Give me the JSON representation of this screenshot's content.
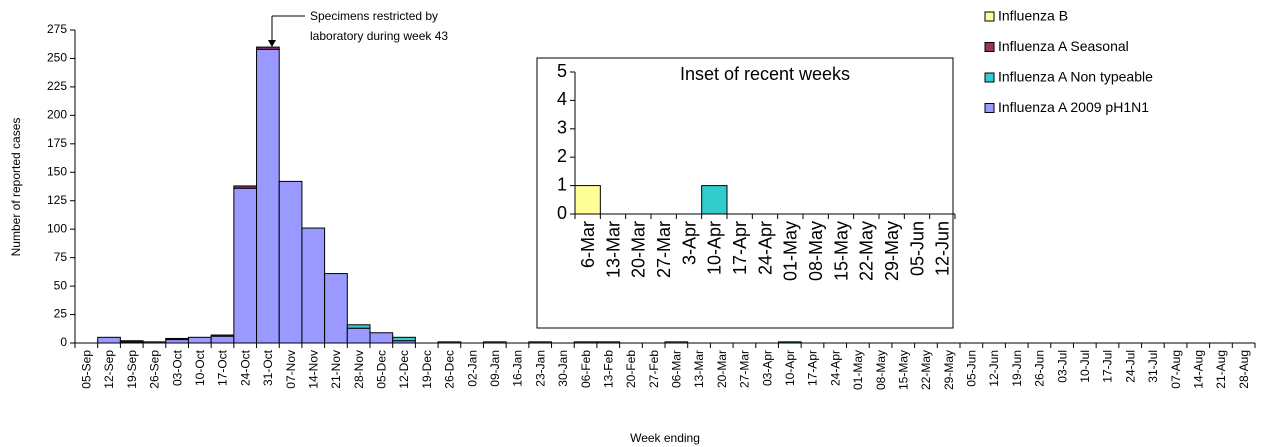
{
  "chart_data": [
    {
      "type": "bar",
      "stacked": true,
      "annotation": [
        "Specimens restricted by",
        "laboratory during week 43"
      ],
      "x_label": "Week ending",
      "y_label": "Number of reported cases",
      "categories": [
        "05-Sep",
        "12-Sep",
        "19-Sep",
        "26-Sep",
        "03-Oct",
        "10-Oct",
        "17-Oct",
        "24-Oct",
        "31-Oct",
        "07-Nov",
        "14-Nov",
        "21-Nov",
        "28-Nov",
        "05-Dec",
        "12-Dec",
        "19-Dec",
        "26-Dec",
        "02-Jan",
        "09-Jan",
        "16-Jan",
        "23-Jan",
        "30-Jan",
        "06-Feb",
        "13-Feb",
        "20-Feb",
        "27-Feb",
        "06-Mar",
        "13-Mar",
        "20-Mar",
        "27-Mar",
        "03-Apr",
        "10-Apr",
        "17-Apr",
        "24-Apr",
        "01-May",
        "08-May",
        "15-May",
        "22-May",
        "29-May",
        "05-Jun",
        "12-Jun",
        "19-Jun",
        "26-Jun",
        "03-Jul",
        "10-Jul",
        "17-Jul",
        "24-Jul",
        "31-Jul",
        "07-Aug",
        "14-Aug",
        "21-Aug",
        "28-Aug"
      ],
      "series": [
        {
          "name": "Influenza B",
          "color": "#ffff99",
          "values": [
            0,
            0,
            0,
            0,
            0,
            0,
            0,
            0,
            0,
            0,
            0,
            0,
            0,
            0,
            0,
            0,
            0,
            0,
            0,
            0,
            0,
            0,
            0,
            0,
            0,
            0,
            1,
            0,
            0,
            0,
            0,
            0,
            0,
            0,
            0,
            0,
            0,
            0,
            0,
            0,
            0,
            0,
            0,
            0,
            0,
            0,
            0,
            0,
            0,
            0,
            0,
            0
          ]
        },
        {
          "name": "Influenza A Seasonal",
          "color": "#993366",
          "values": [
            0,
            0,
            0,
            0,
            1,
            0,
            1,
            2,
            2,
            0,
            0,
            0,
            0,
            0,
            0,
            0,
            0,
            0,
            0,
            0,
            0,
            0,
            0,
            0,
            0,
            0,
            0,
            0,
            0,
            0,
            0,
            0,
            0,
            0,
            0,
            0,
            0,
            0,
            0,
            0,
            0,
            0,
            0,
            0,
            0,
            0,
            0,
            0,
            0,
            0,
            0,
            0
          ]
        },
        {
          "name": "Influenza A Non typeable",
          "color": "#33cccc",
          "values": [
            0,
            0,
            1,
            0,
            0,
            0,
            0,
            0,
            0,
            0,
            0,
            0,
            3,
            0,
            3,
            0,
            0,
            0,
            0,
            0,
            0,
            0,
            0,
            0,
            0,
            0,
            0,
            0,
            0,
            0,
            0,
            1,
            0,
            0,
            0,
            0,
            0,
            0,
            0,
            0,
            0,
            0,
            0,
            0,
            0,
            0,
            0,
            0,
            0,
            0,
            0,
            0
          ]
        },
        {
          "name": "Influenza A 2009 pH1N1",
          "color": "#9999ff",
          "values": [
            0,
            5,
            1,
            1,
            3,
            5,
            6,
            136,
            258,
            142,
            101,
            61,
            13,
            9,
            2,
            0,
            1,
            0,
            1,
            0,
            1,
            0,
            1,
            1,
            0,
            0,
            0,
            0,
            0,
            0,
            0,
            0,
            0,
            0,
            0,
            0,
            0,
            0,
            0,
            0,
            0,
            0,
            0,
            0,
            0,
            0,
            0,
            0,
            0,
            0,
            0,
            0
          ]
        }
      ],
      "ylim": [
        0,
        275
      ],
      "yticks": [
        0,
        25,
        50,
        75,
        100,
        125,
        150,
        175,
        200,
        225,
        250,
        275
      ],
      "legend": "top-right"
    },
    {
      "type": "bar",
      "stacked": true,
      "title": "Inset of recent weeks",
      "categories": [
        "6-Mar",
        "13-Mar",
        "20-Mar",
        "27-Mar",
        "3-Apr",
        "10-Apr",
        "17-Apr",
        "24-Apr",
        "01-May",
        "08-May",
        "15-May",
        "22-May",
        "29-May",
        "05-Jun",
        "12-Jun"
      ],
      "series": [
        {
          "color": "#ffff99",
          "values": [
            1,
            0,
            0,
            0,
            0,
            0,
            0,
            0,
            0,
            0,
            0,
            0,
            0,
            0,
            0
          ]
        },
        {
          "color": "#33cccc",
          "values": [
            0,
            0,
            0,
            0,
            0,
            1,
            0,
            0,
            0,
            0,
            0,
            0,
            0,
            0,
            0
          ]
        }
      ],
      "ylim": [
        0,
        5
      ],
      "yticks": [
        0,
        1,
        2,
        3,
        4,
        5
      ]
    }
  ]
}
